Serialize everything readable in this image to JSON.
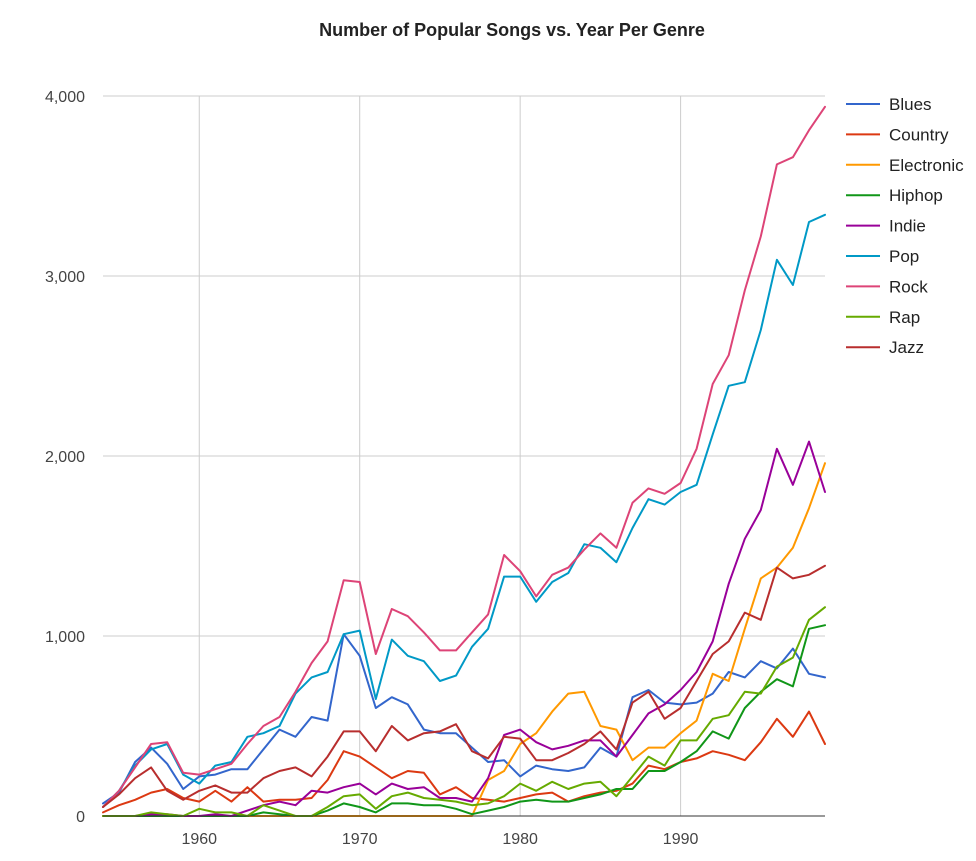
{
  "chart_data": {
    "type": "line",
    "title": "Number of Popular Songs vs. Year Per Genre",
    "xlabel": "",
    "ylabel": "",
    "xlim": [
      1954,
      1999
    ],
    "ylim": [
      0,
      4000
    ],
    "x_ticks": [
      1960,
      1970,
      1980,
      1990
    ],
    "x_tick_labels": [
      "1960",
      "1970",
      "1980",
      "1990"
    ],
    "y_ticks": [
      0,
      1000,
      2000,
      3000,
      4000
    ],
    "y_tick_labels": [
      "0",
      "1,000",
      "2,000",
      "3,000",
      "4,000"
    ],
    "grid": true,
    "legend_position": "right",
    "x": [
      1954,
      1955,
      1956,
      1957,
      1958,
      1959,
      1960,
      1961,
      1962,
      1963,
      1964,
      1965,
      1966,
      1967,
      1968,
      1969,
      1970,
      1971,
      1972,
      1973,
      1974,
      1975,
      1976,
      1977,
      1978,
      1979,
      1980,
      1981,
      1982,
      1983,
      1984,
      1985,
      1986,
      1987,
      1988,
      1989,
      1990,
      1991,
      1992,
      1993,
      1994,
      1995,
      1996,
      1997,
      1998,
      1999
    ],
    "series": [
      {
        "name": "Blues",
        "color": "#3366cc",
        "values": [
          70,
          130,
          300,
          380,
          290,
          150,
          220,
          230,
          260,
          260,
          370,
          480,
          440,
          550,
          530,
          1010,
          890,
          600,
          660,
          620,
          480,
          460,
          460,
          380,
          300,
          310,
          220,
          280,
          260,
          250,
          270,
          380,
          330,
          660,
          700,
          630,
          620,
          630,
          680,
          800,
          770,
          860,
          820,
          930,
          790,
          770
        ]
      },
      {
        "name": "Country",
        "color": "#dc3912",
        "values": [
          20,
          60,
          90,
          130,
          150,
          100,
          80,
          140,
          80,
          160,
          80,
          90,
          90,
          100,
          200,
          360,
          330,
          270,
          210,
          250,
          240,
          120,
          160,
          100,
          90,
          80,
          100,
          120,
          130,
          80,
          110,
          130,
          140,
          180,
          280,
          260,
          300,
          320,
          360,
          340,
          310,
          410,
          540,
          440,
          580,
          400
        ]
      },
      {
        "name": "Electronic",
        "color": "#ff9900",
        "values": [
          0,
          0,
          0,
          0,
          0,
          0,
          0,
          0,
          0,
          0,
          0,
          0,
          0,
          0,
          0,
          0,
          0,
          0,
          0,
          0,
          0,
          0,
          0,
          0,
          200,
          250,
          400,
          460,
          580,
          680,
          690,
          500,
          480,
          310,
          380,
          380,
          460,
          530,
          790,
          750,
          1040,
          1320,
          1380,
          1490,
          1710,
          1960
        ]
      },
      {
        "name": "Hiphop",
        "color": "#109618",
        "values": [
          0,
          0,
          0,
          0,
          0,
          0,
          0,
          0,
          0,
          0,
          20,
          10,
          0,
          0,
          30,
          70,
          50,
          20,
          70,
          70,
          60,
          60,
          40,
          10,
          30,
          50,
          80,
          90,
          80,
          80,
          100,
          120,
          150,
          150,
          250,
          250,
          300,
          360,
          470,
          430,
          600,
          690,
          760,
          720,
          1040,
          1060
        ]
      },
      {
        "name": "Indie",
        "color": "#990099",
        "values": [
          0,
          0,
          0,
          10,
          10,
          0,
          0,
          10,
          0,
          30,
          60,
          80,
          60,
          140,
          130,
          160,
          180,
          120,
          180,
          150,
          160,
          100,
          100,
          80,
          210,
          450,
          480,
          410,
          370,
          390,
          420,
          420,
          330,
          450,
          570,
          620,
          700,
          800,
          970,
          1290,
          1540,
          1700,
          2040,
          1840,
          2080,
          1800
        ]
      },
      {
        "name": "Pop",
        "color": "#0099c6",
        "values": [
          50,
          140,
          280,
          370,
          400,
          230,
          180,
          280,
          300,
          440,
          460,
          500,
          680,
          770,
          800,
          1010,
          1030,
          650,
          980,
          890,
          860,
          750,
          780,
          940,
          1040,
          1330,
          1330,
          1190,
          1300,
          1350,
          1510,
          1490,
          1410,
          1600,
          1760,
          1730,
          1800,
          1840,
          2120,
          2390,
          2410,
          2700,
          3090,
          2950,
          3300,
          3340
        ]
      },
      {
        "name": "Rock",
        "color": "#dd4477",
        "values": [
          50,
          140,
          270,
          400,
          410,
          240,
          230,
          260,
          290,
          400,
          500,
          550,
          690,
          850,
          970,
          1310,
          1300,
          900,
          1150,
          1110,
          1020,
          920,
          920,
          1020,
          1120,
          1450,
          1360,
          1220,
          1340,
          1380,
          1480,
          1570,
          1490,
          1740,
          1820,
          1790,
          1850,
          2040,
          2400,
          2560,
          2920,
          3220,
          3620,
          3660,
          3810,
          3940
        ]
      },
      {
        "name": "Rap",
        "color": "#66aa00",
        "values": [
          0,
          0,
          0,
          20,
          10,
          0,
          40,
          20,
          20,
          0,
          60,
          30,
          0,
          0,
          50,
          110,
          120,
          40,
          110,
          130,
          100,
          90,
          80,
          60,
          70,
          110,
          180,
          140,
          190,
          150,
          180,
          190,
          110,
          220,
          330,
          280,
          420,
          420,
          540,
          560,
          690,
          680,
          830,
          880,
          1090,
          1160
        ]
      },
      {
        "name": "Jazz",
        "color": "#b82e2e",
        "values": [
          50,
          120,
          210,
          270,
          140,
          90,
          140,
          170,
          130,
          130,
          210,
          250,
          270,
          220,
          330,
          470,
          470,
          360,
          500,
          420,
          460,
          470,
          510,
          360,
          320,
          440,
          430,
          310,
          310,
          350,
          400,
          470,
          370,
          630,
          690,
          540,
          600,
          750,
          900,
          970,
          1130,
          1090,
          1380,
          1320,
          1340,
          1390
        ]
      }
    ]
  }
}
